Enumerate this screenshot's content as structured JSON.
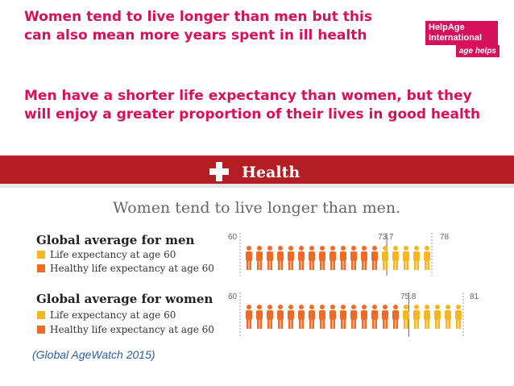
{
  "slide": {
    "title": "Women tend to live longer than men but this can also mean more years spent in ill health",
    "subtitle": "Men have a shorter life expectancy than women, but they will enjoy a greater proportion of their lives in good health",
    "citation": "(Global AgeWatch 2015)"
  },
  "logo": {
    "line1": "HelpAge",
    "line2": "International",
    "tag": "age helps"
  },
  "infographic": {
    "banner_title": "Health",
    "headline": "Women tend to live longer than men.",
    "banner_color": "#b41e23",
    "healthy_color": "#ee6b27",
    "life_color": "#f4b621",
    "men": {
      "title": "Global average for men",
      "legend_life": "Life expectancy at age 60",
      "legend_healthy": "Healthy life expectancy at age 60",
      "start": "60",
      "healthy_value_label": "73.7",
      "life_value_label": "78",
      "start_age": 60,
      "healthy_to_age": 73.7,
      "life_to_age": 78
    },
    "women": {
      "title": "Global average for women",
      "legend_life": "Life expectancy at age 60",
      "legend_healthy": "Healthy life expectancy at age 60",
      "start": "60",
      "healthy_value_label": "75.8",
      "life_value_label": "81",
      "start_age": 60,
      "healthy_to_age": 75.8,
      "life_to_age": 81
    }
  }
}
